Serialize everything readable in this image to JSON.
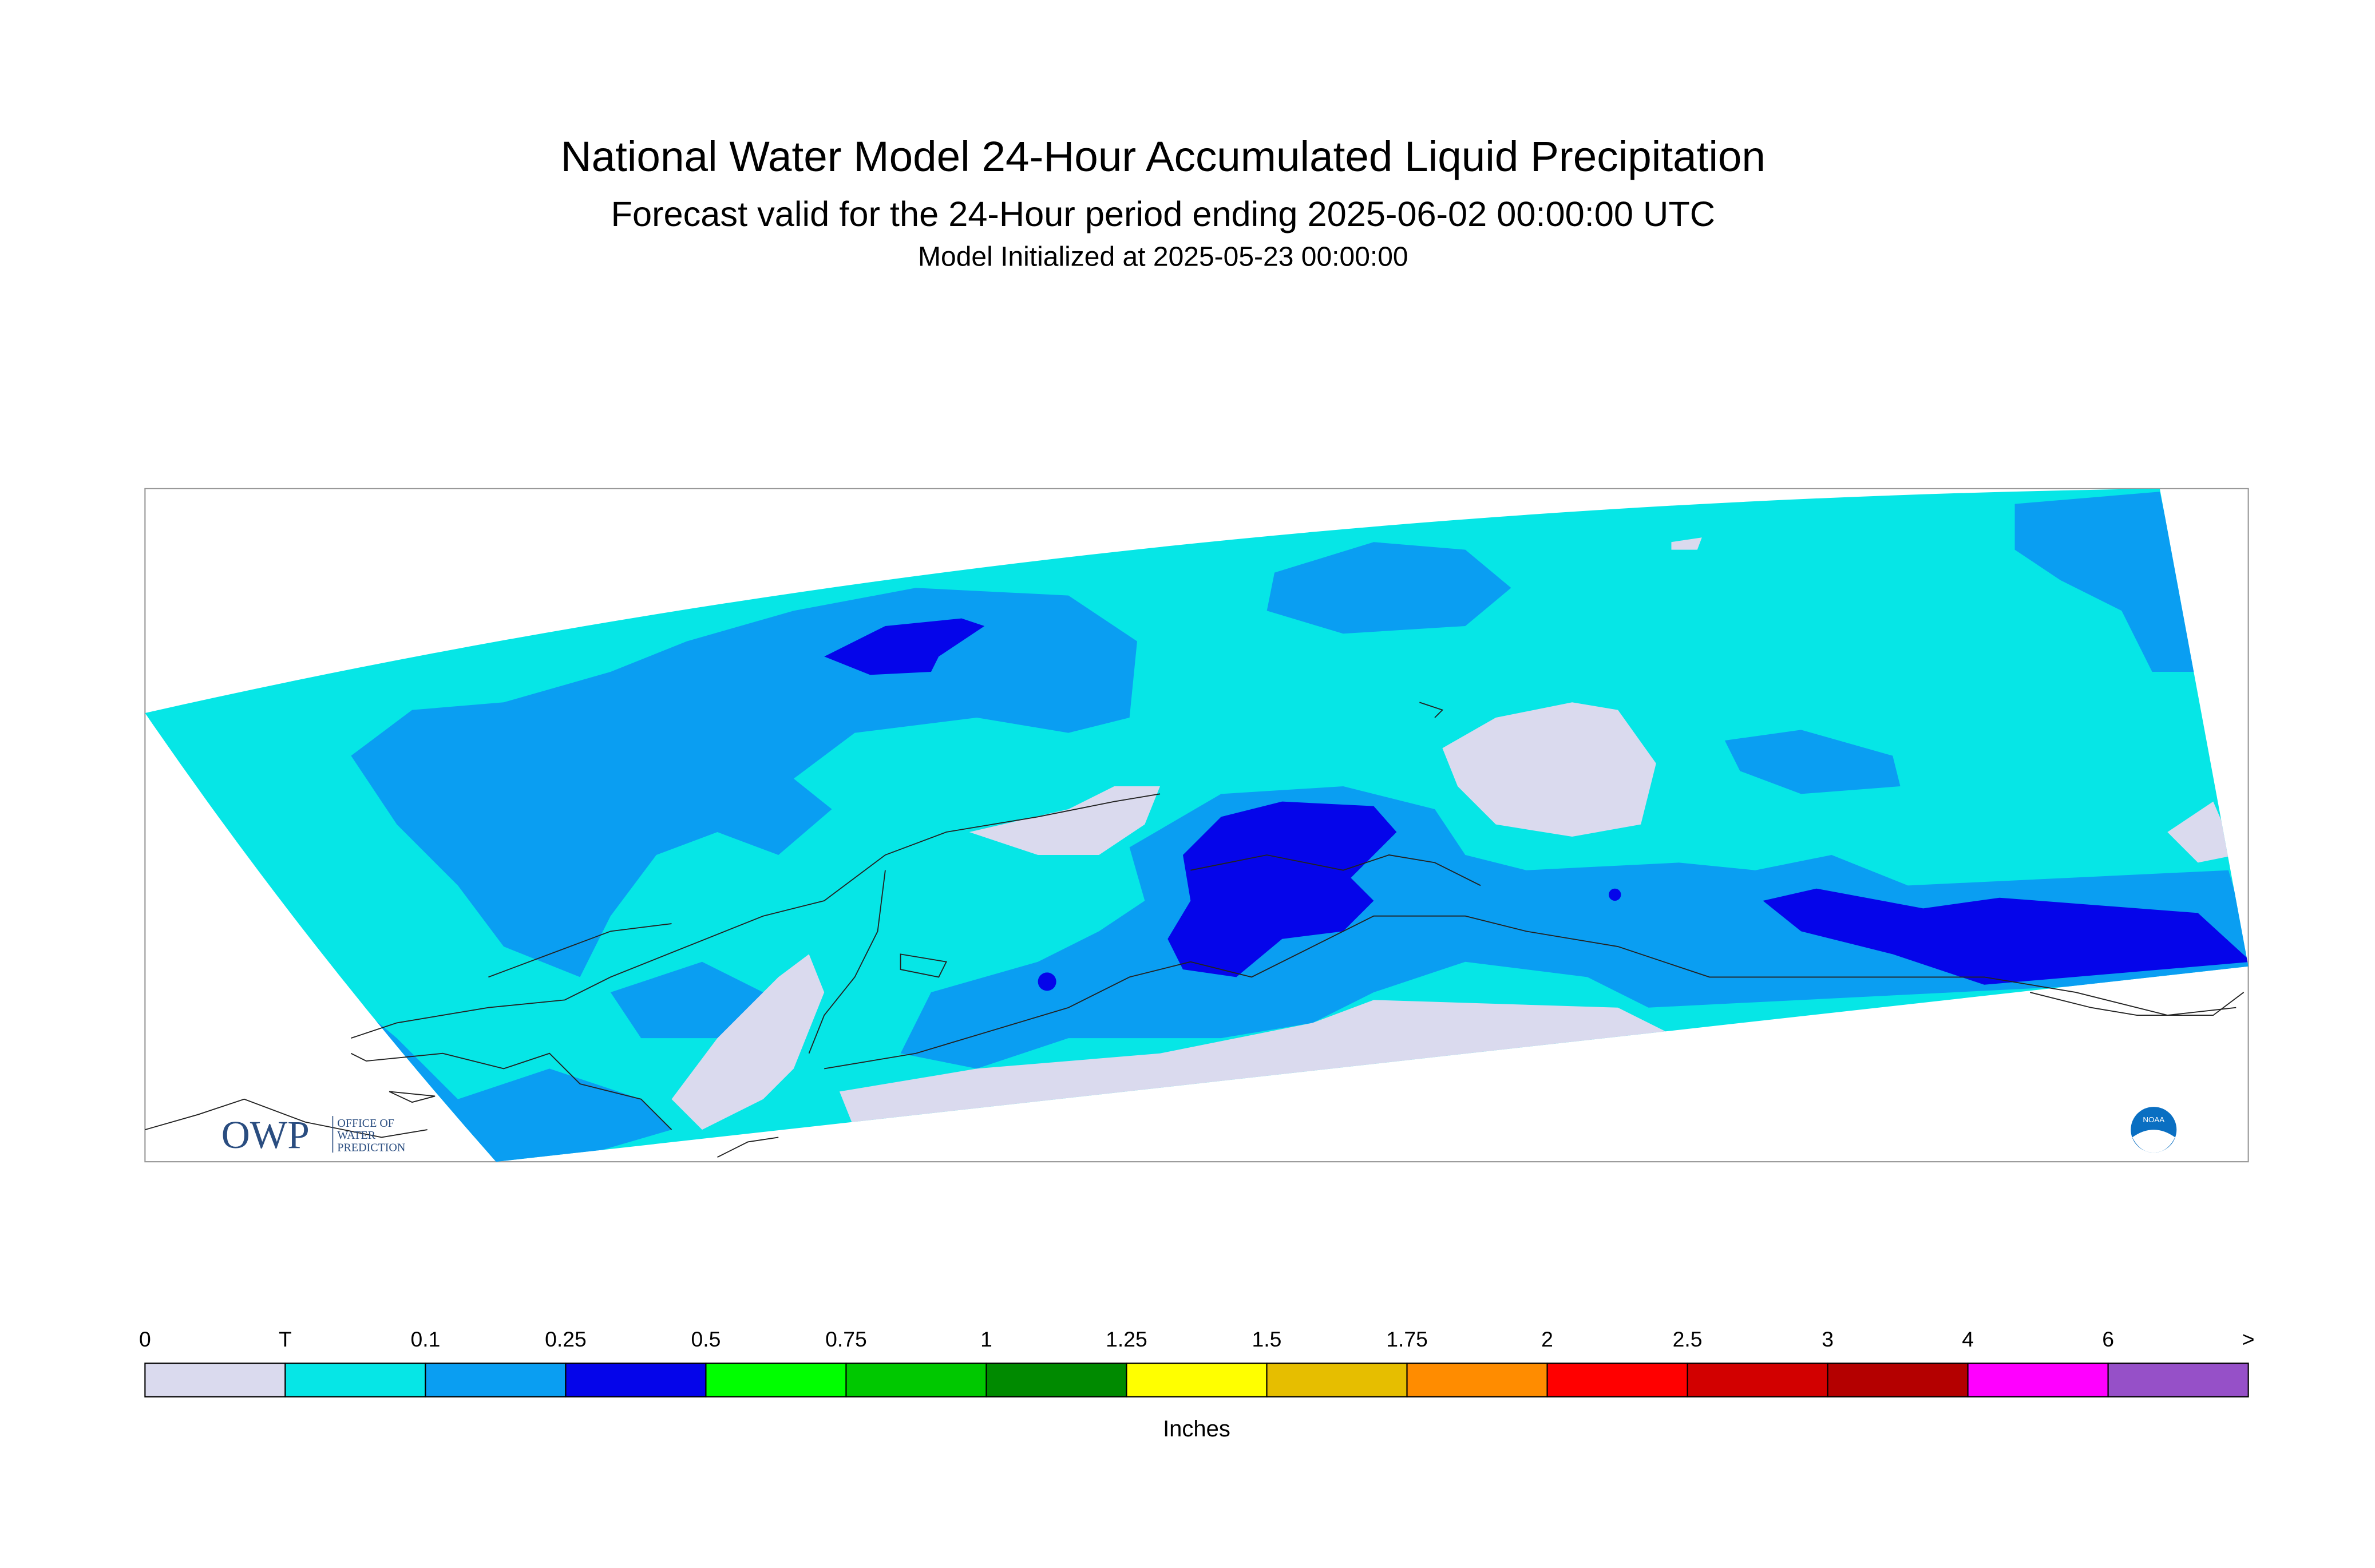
{
  "header": {
    "title": "National Water Model 24-Hour Accumulated Liquid Precipitation",
    "subtitle": "Forecast valid for the 24-Hour period ending 2025-06-02 00:00:00 UTC",
    "initialized": "Model Initialized at 2025-05-23 00:00:00"
  },
  "legend": {
    "labels": [
      "0",
      "T",
      "0.1",
      "0.25",
      "0.5",
      "0.75",
      "1",
      "1.25",
      "1.5",
      "1.75",
      "2",
      "2.5",
      "3",
      "4",
      "6",
      ">"
    ],
    "colors": [
      "#dadaee",
      "#06e6e6",
      "#0a9ef2",
      "#0505ea",
      "#00ff00",
      "#00c800",
      "#008a00",
      "#ffff00",
      "#e6be00",
      "#ff8c00",
      "#ff0000",
      "#d20000",
      "#b40000",
      "#ff00ff",
      "#9650c8"
    ],
    "unit": "Inches"
  },
  "logos": {
    "owp": "OWP",
    "owp_lines": [
      "OFFICE OF",
      "WATER",
      "PREDICTION"
    ],
    "noaa": "NOAA"
  }
}
